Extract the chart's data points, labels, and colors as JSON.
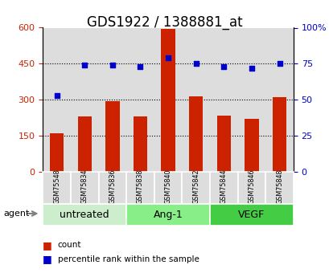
{
  "title": "GDS1922 / 1388881_at",
  "categories": [
    "GSM75548",
    "GSM75834",
    "GSM75836",
    "GSM75838",
    "GSM75840",
    "GSM75842",
    "GSM75844",
    "GSM75846",
    "GSM75848"
  ],
  "counts": [
    160,
    230,
    295,
    230,
    595,
    315,
    235,
    220,
    310
  ],
  "percentiles": [
    53,
    74,
    74,
    73,
    79,
    75,
    73,
    72,
    75
  ],
  "groups": [
    {
      "label": "untreated",
      "indices": [
        0,
        1,
        2
      ],
      "color": "#cceecc"
    },
    {
      "label": "Ang-1",
      "indices": [
        3,
        4,
        5
      ],
      "color": "#88ee88"
    },
    {
      "label": "VEGF",
      "indices": [
        6,
        7,
        8
      ],
      "color": "#44cc44"
    }
  ],
  "bar_color": "#cc2200",
  "dot_color": "#0000cc",
  "left_ylim": [
    0,
    600
  ],
  "right_ylim": [
    0,
    100
  ],
  "left_yticks": [
    0,
    150,
    300,
    450,
    600
  ],
  "right_yticks": [
    0,
    25,
    50,
    75,
    100
  ],
  "right_yticklabels": [
    "0",
    "25",
    "50",
    "75",
    "100%"
  ],
  "grid_values": [
    150,
    300,
    450
  ],
  "agent_label": "agent",
  "legend_count_label": "count",
  "legend_pct_label": "percentile rank within the sample",
  "bar_width": 0.5,
  "sample_bg_color": "#dddddd",
  "title_fontsize": 12,
  "tick_fontsize": 8,
  "group_fontsize": 9,
  "axis_label_color_left": "#cc2200",
  "axis_label_color_right": "#0000cc"
}
